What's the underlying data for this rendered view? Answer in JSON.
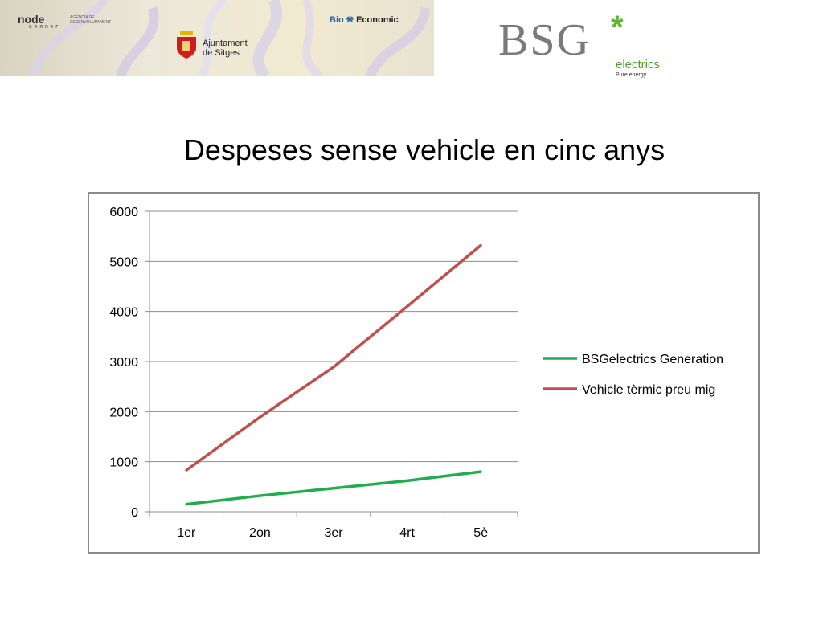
{
  "header": {
    "node_logo": "node",
    "node_sub": "GARRAF",
    "node_small": "AGÈNCIA DE DESENVOLUPAMENT",
    "ajuntament_line1": "Ajuntament",
    "ajuntament_line2": "de Sitges",
    "bio_part1": "Bio",
    "bio_part2": "Economic",
    "bsg": "BSG",
    "bsg_star": "*",
    "bsg_electrics": "electrics",
    "bsg_tagline": "Pure energy"
  },
  "slide": {
    "title": "Despeses sense vehicle en cinc anys"
  },
  "chart_data": {
    "type": "line",
    "title": "",
    "xlabel": "",
    "ylabel": "",
    "categories": [
      "1er",
      "2on",
      "3er",
      "4rt",
      "5è"
    ],
    "ylim": [
      0,
      6000
    ],
    "yticks": [
      0,
      1000,
      2000,
      3000,
      4000,
      5000,
      6000
    ],
    "grid": true,
    "legend_position": "right",
    "series": [
      {
        "name": "BSGelectrics Generation",
        "color": "#1fae4b",
        "values": [
          150,
          320,
          470,
          620,
          800
        ]
      },
      {
        "name": "Vehicle tèrmic preu mig",
        "color": "#c0504d",
        "values": [
          830,
          1890,
          2890,
          4100,
          5320
        ]
      }
    ]
  }
}
